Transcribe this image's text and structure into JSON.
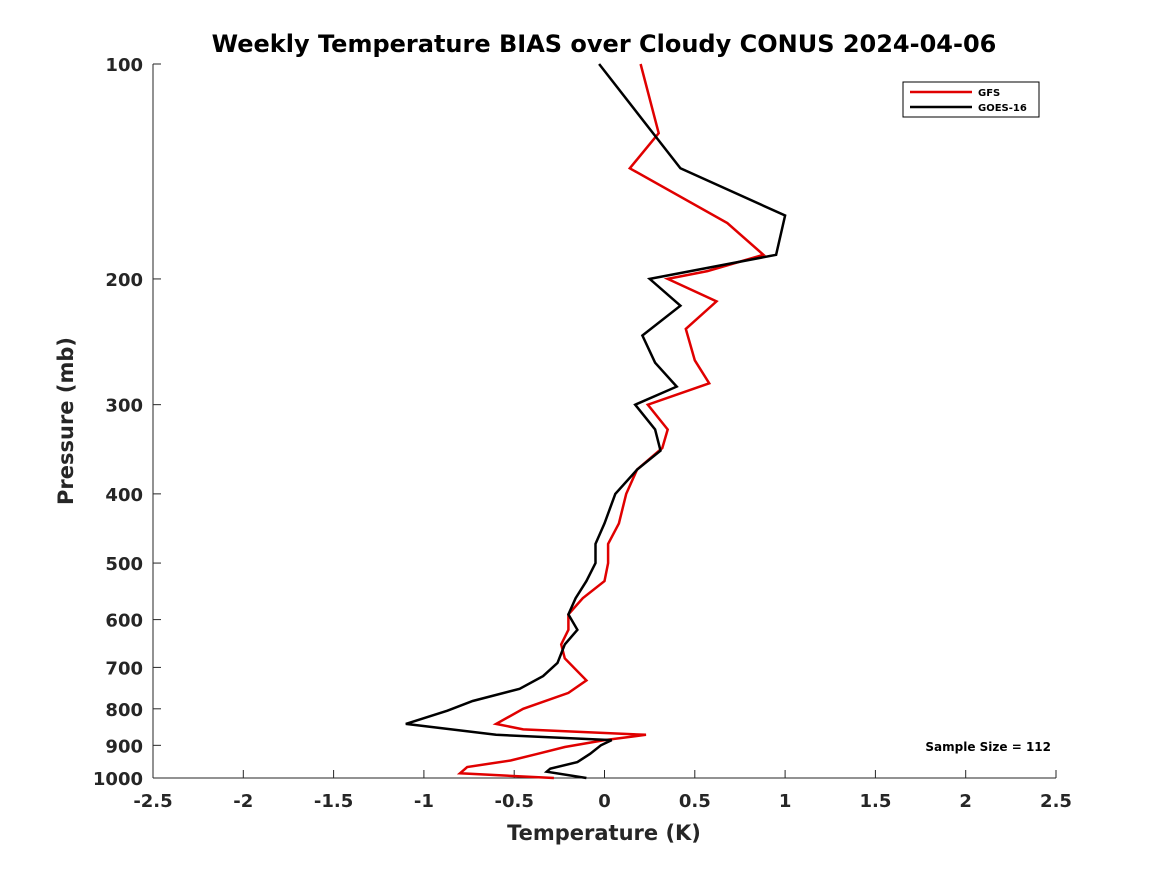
{
  "chart_data": {
    "type": "line",
    "title": "Weekly Temperature BIAS over Cloudy CONUS 2024-04-06",
    "xlabel": "Temperature (K)",
    "ylabel": "Pressure (mb)",
    "xlim": [
      -2.5,
      2.5
    ],
    "ylim": [
      100,
      1000
    ],
    "y_scale": "log",
    "y_reversed": true,
    "xticks": [
      "-2.5",
      "-2",
      "-1.5",
      "-1",
      "-0.5",
      "0",
      "0.5",
      "1",
      "1.5",
      "2",
      "2.5"
    ],
    "yticks": [
      "100",
      "200",
      "300",
      "400",
      "500",
      "600",
      "700",
      "800",
      "900",
      "1000"
    ],
    "grid": false,
    "legend_position": "top-right",
    "annotation": "Sample Size = 112",
    "series": [
      {
        "name": "GFS",
        "color": "#e00000",
        "points": [
          [
            0.2,
            100
          ],
          [
            0.3,
            125
          ],
          [
            0.14,
            140
          ],
          [
            0.68,
            167
          ],
          [
            0.88,
            185
          ],
          [
            0.57,
            195
          ],
          [
            0.35,
            200
          ],
          [
            0.62,
            215
          ],
          [
            0.45,
            235
          ],
          [
            0.5,
            260
          ],
          [
            0.58,
            280
          ],
          [
            0.24,
            300
          ],
          [
            0.35,
            325
          ],
          [
            0.32,
            345
          ],
          [
            0.18,
            370
          ],
          [
            0.12,
            400
          ],
          [
            0.08,
            440
          ],
          [
            0.02,
            470
          ],
          [
            0.02,
            500
          ],
          [
            0.0,
            530
          ],
          [
            -0.12,
            560
          ],
          [
            -0.2,
            590
          ],
          [
            -0.2,
            620
          ],
          [
            -0.24,
            650
          ],
          [
            -0.22,
            680
          ],
          [
            -0.1,
            730
          ],
          [
            -0.2,
            760
          ],
          [
            -0.45,
            800
          ],
          [
            -0.6,
            840
          ],
          [
            -0.45,
            855
          ],
          [
            0.23,
            870
          ],
          [
            0.0,
            885
          ],
          [
            -0.22,
            905
          ],
          [
            -0.37,
            925
          ],
          [
            -0.52,
            945
          ],
          [
            -0.76,
            965
          ],
          [
            -0.8,
            985
          ],
          [
            -0.28,
            1000
          ]
        ]
      },
      {
        "name": "GOES-16",
        "color": "#000000",
        "points": [
          [
            -0.03,
            100
          ],
          [
            0.42,
            140
          ],
          [
            1.0,
            163
          ],
          [
            0.95,
            185
          ],
          [
            0.25,
            200
          ],
          [
            0.42,
            218
          ],
          [
            0.21,
            240
          ],
          [
            0.28,
            262
          ],
          [
            0.4,
            283
          ],
          [
            0.17,
            300
          ],
          [
            0.28,
            325
          ],
          [
            0.31,
            348
          ],
          [
            0.18,
            370
          ],
          [
            0.06,
            400
          ],
          [
            0.0,
            440
          ],
          [
            -0.05,
            470
          ],
          [
            -0.05,
            500
          ],
          [
            -0.1,
            530
          ],
          [
            -0.16,
            560
          ],
          [
            -0.2,
            590
          ],
          [
            -0.15,
            620
          ],
          [
            -0.22,
            650
          ],
          [
            -0.26,
            690
          ],
          [
            -0.34,
            720
          ],
          [
            -0.47,
            750
          ],
          [
            -0.73,
            780
          ],
          [
            -0.87,
            805
          ],
          [
            -1.1,
            840
          ],
          [
            -0.6,
            870
          ],
          [
            0.04,
            885
          ],
          [
            -0.02,
            900
          ],
          [
            -0.08,
            925
          ],
          [
            -0.15,
            950
          ],
          [
            -0.3,
            970
          ],
          [
            -0.32,
            980
          ],
          [
            -0.1,
            1000
          ]
        ]
      }
    ]
  }
}
